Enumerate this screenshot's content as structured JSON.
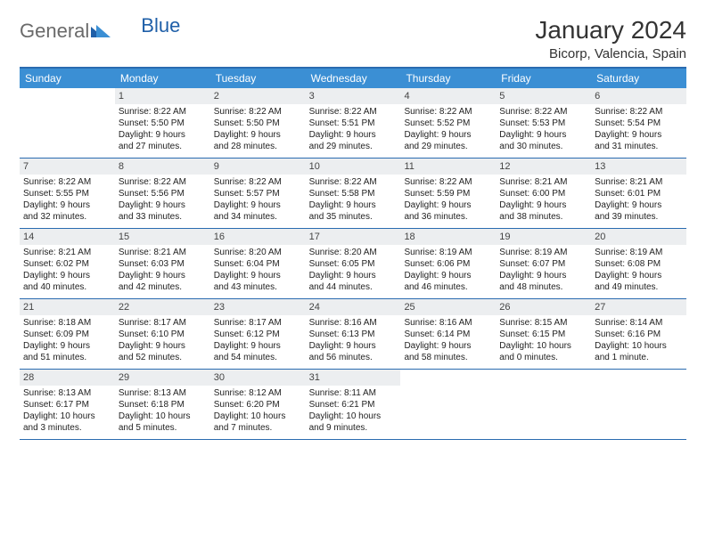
{
  "logo": {
    "text1": "General",
    "text2": "Blue"
  },
  "title": "January 2024",
  "location": "Bicorp, Valencia, Spain",
  "colors": {
    "header_bg": "#3b8fd4",
    "header_text": "#ffffff",
    "rule": "#2a6bb0",
    "daynum_bg": "#eceef0",
    "logo_gray": "#6a6a6a",
    "logo_blue": "#1f5fa8"
  },
  "fonts": {
    "title_pt": 28,
    "location_pt": 15,
    "dow_pt": 12,
    "daynum_pt": 11,
    "body_pt": 10
  },
  "days_of_week": [
    "Sunday",
    "Monday",
    "Tuesday",
    "Wednesday",
    "Thursday",
    "Friday",
    "Saturday"
  ],
  "weeks": [
    [
      null,
      {
        "n": "1",
        "sr": "Sunrise: 8:22 AM",
        "ss": "Sunset: 5:50 PM",
        "d1": "Daylight: 9 hours",
        "d2": "and 27 minutes."
      },
      {
        "n": "2",
        "sr": "Sunrise: 8:22 AM",
        "ss": "Sunset: 5:50 PM",
        "d1": "Daylight: 9 hours",
        "d2": "and 28 minutes."
      },
      {
        "n": "3",
        "sr": "Sunrise: 8:22 AM",
        "ss": "Sunset: 5:51 PM",
        "d1": "Daylight: 9 hours",
        "d2": "and 29 minutes."
      },
      {
        "n": "4",
        "sr": "Sunrise: 8:22 AM",
        "ss": "Sunset: 5:52 PM",
        "d1": "Daylight: 9 hours",
        "d2": "and 29 minutes."
      },
      {
        "n": "5",
        "sr": "Sunrise: 8:22 AM",
        "ss": "Sunset: 5:53 PM",
        "d1": "Daylight: 9 hours",
        "d2": "and 30 minutes."
      },
      {
        "n": "6",
        "sr": "Sunrise: 8:22 AM",
        "ss": "Sunset: 5:54 PM",
        "d1": "Daylight: 9 hours",
        "d2": "and 31 minutes."
      }
    ],
    [
      {
        "n": "7",
        "sr": "Sunrise: 8:22 AM",
        "ss": "Sunset: 5:55 PM",
        "d1": "Daylight: 9 hours",
        "d2": "and 32 minutes."
      },
      {
        "n": "8",
        "sr": "Sunrise: 8:22 AM",
        "ss": "Sunset: 5:56 PM",
        "d1": "Daylight: 9 hours",
        "d2": "and 33 minutes."
      },
      {
        "n": "9",
        "sr": "Sunrise: 8:22 AM",
        "ss": "Sunset: 5:57 PM",
        "d1": "Daylight: 9 hours",
        "d2": "and 34 minutes."
      },
      {
        "n": "10",
        "sr": "Sunrise: 8:22 AM",
        "ss": "Sunset: 5:58 PM",
        "d1": "Daylight: 9 hours",
        "d2": "and 35 minutes."
      },
      {
        "n": "11",
        "sr": "Sunrise: 8:22 AM",
        "ss": "Sunset: 5:59 PM",
        "d1": "Daylight: 9 hours",
        "d2": "and 36 minutes."
      },
      {
        "n": "12",
        "sr": "Sunrise: 8:21 AM",
        "ss": "Sunset: 6:00 PM",
        "d1": "Daylight: 9 hours",
        "d2": "and 38 minutes."
      },
      {
        "n": "13",
        "sr": "Sunrise: 8:21 AM",
        "ss": "Sunset: 6:01 PM",
        "d1": "Daylight: 9 hours",
        "d2": "and 39 minutes."
      }
    ],
    [
      {
        "n": "14",
        "sr": "Sunrise: 8:21 AM",
        "ss": "Sunset: 6:02 PM",
        "d1": "Daylight: 9 hours",
        "d2": "and 40 minutes."
      },
      {
        "n": "15",
        "sr": "Sunrise: 8:21 AM",
        "ss": "Sunset: 6:03 PM",
        "d1": "Daylight: 9 hours",
        "d2": "and 42 minutes."
      },
      {
        "n": "16",
        "sr": "Sunrise: 8:20 AM",
        "ss": "Sunset: 6:04 PM",
        "d1": "Daylight: 9 hours",
        "d2": "and 43 minutes."
      },
      {
        "n": "17",
        "sr": "Sunrise: 8:20 AM",
        "ss": "Sunset: 6:05 PM",
        "d1": "Daylight: 9 hours",
        "d2": "and 44 minutes."
      },
      {
        "n": "18",
        "sr": "Sunrise: 8:19 AM",
        "ss": "Sunset: 6:06 PM",
        "d1": "Daylight: 9 hours",
        "d2": "and 46 minutes."
      },
      {
        "n": "19",
        "sr": "Sunrise: 8:19 AM",
        "ss": "Sunset: 6:07 PM",
        "d1": "Daylight: 9 hours",
        "d2": "and 48 minutes."
      },
      {
        "n": "20",
        "sr": "Sunrise: 8:19 AM",
        "ss": "Sunset: 6:08 PM",
        "d1": "Daylight: 9 hours",
        "d2": "and 49 minutes."
      }
    ],
    [
      {
        "n": "21",
        "sr": "Sunrise: 8:18 AM",
        "ss": "Sunset: 6:09 PM",
        "d1": "Daylight: 9 hours",
        "d2": "and 51 minutes."
      },
      {
        "n": "22",
        "sr": "Sunrise: 8:17 AM",
        "ss": "Sunset: 6:10 PM",
        "d1": "Daylight: 9 hours",
        "d2": "and 52 minutes."
      },
      {
        "n": "23",
        "sr": "Sunrise: 8:17 AM",
        "ss": "Sunset: 6:12 PM",
        "d1": "Daylight: 9 hours",
        "d2": "and 54 minutes."
      },
      {
        "n": "24",
        "sr": "Sunrise: 8:16 AM",
        "ss": "Sunset: 6:13 PM",
        "d1": "Daylight: 9 hours",
        "d2": "and 56 minutes."
      },
      {
        "n": "25",
        "sr": "Sunrise: 8:16 AM",
        "ss": "Sunset: 6:14 PM",
        "d1": "Daylight: 9 hours",
        "d2": "and 58 minutes."
      },
      {
        "n": "26",
        "sr": "Sunrise: 8:15 AM",
        "ss": "Sunset: 6:15 PM",
        "d1": "Daylight: 10 hours",
        "d2": "and 0 minutes."
      },
      {
        "n": "27",
        "sr": "Sunrise: 8:14 AM",
        "ss": "Sunset: 6:16 PM",
        "d1": "Daylight: 10 hours",
        "d2": "and 1 minute."
      }
    ],
    [
      {
        "n": "28",
        "sr": "Sunrise: 8:13 AM",
        "ss": "Sunset: 6:17 PM",
        "d1": "Daylight: 10 hours",
        "d2": "and 3 minutes."
      },
      {
        "n": "29",
        "sr": "Sunrise: 8:13 AM",
        "ss": "Sunset: 6:18 PM",
        "d1": "Daylight: 10 hours",
        "d2": "and 5 minutes."
      },
      {
        "n": "30",
        "sr": "Sunrise: 8:12 AM",
        "ss": "Sunset: 6:20 PM",
        "d1": "Daylight: 10 hours",
        "d2": "and 7 minutes."
      },
      {
        "n": "31",
        "sr": "Sunrise: 8:11 AM",
        "ss": "Sunset: 6:21 PM",
        "d1": "Daylight: 10 hours",
        "d2": "and 9 minutes."
      },
      null,
      null,
      null
    ]
  ]
}
